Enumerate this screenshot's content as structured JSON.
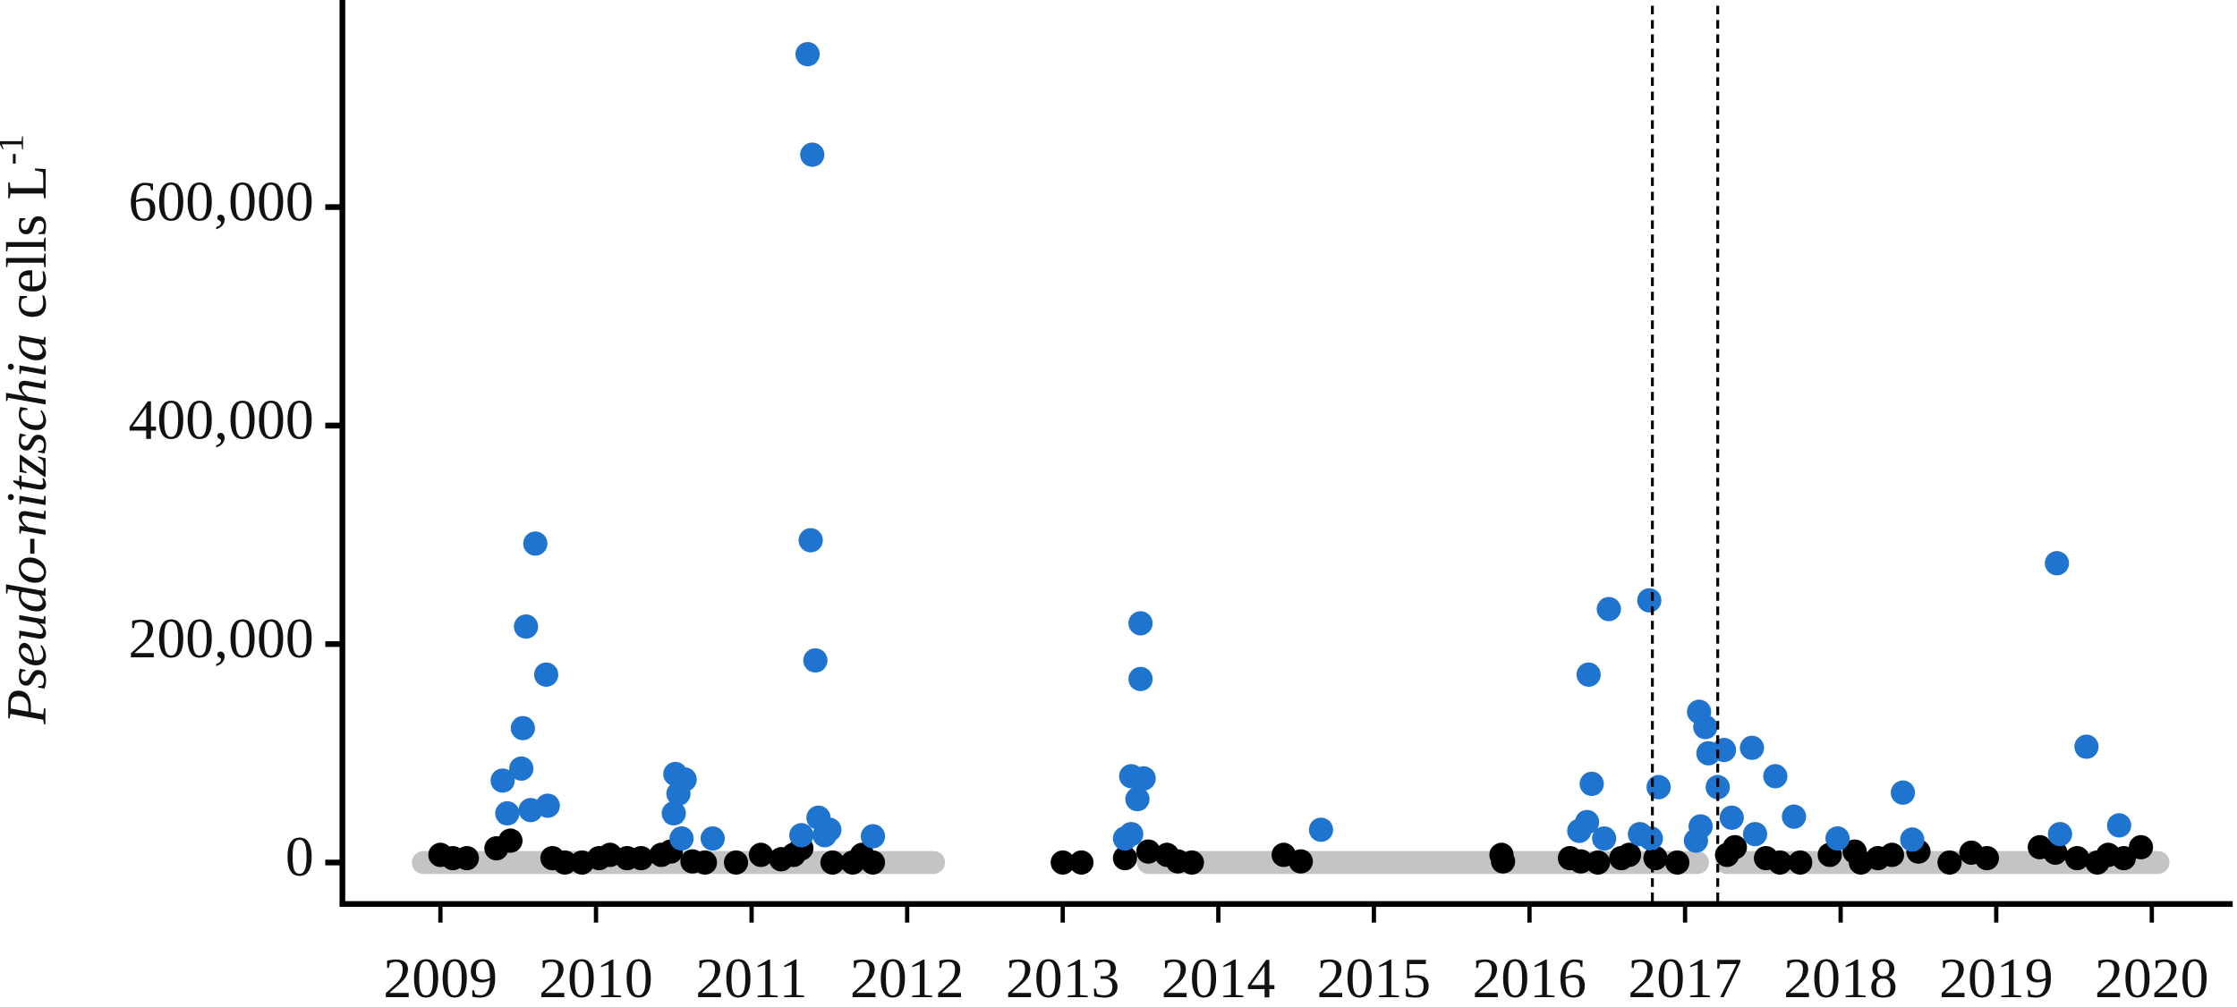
{
  "chart_data": {
    "type": "scatter",
    "ylabel": {
      "italic": "Pseudo-nitzschia",
      "plain": "cells L",
      "superscript": "-1"
    },
    "xlim": [
      2008.37,
      2020.52
    ],
    "ylim": [
      -38000,
      787000
    ],
    "xticks": [
      2009,
      2010,
      2011,
      2012,
      2013,
      2014,
      2015,
      2016,
      2017,
      2018,
      2019,
      2020
    ],
    "yticks": [
      {
        "value": 0,
        "label": "0"
      },
      {
        "value": 200000,
        "label": "200,000"
      },
      {
        "value": 400000,
        "label": "400,000"
      },
      {
        "value": 600000,
        "label": "600,000"
      }
    ],
    "reference_lines": {
      "x": [
        2016.79,
        2017.21
      ],
      "style": "dashed",
      "color": "#000000"
    },
    "series": [
      {
        "mode": "line",
        "color": "#c4c4c4",
        "x": [
          2008.89,
          2012.17,
          null,
          2013.55,
          2017.08,
          null,
          2017.27,
          2020.04
        ],
        "values": [
          0,
          0,
          null,
          0,
          0,
          null,
          0,
          0
        ]
      },
      {
        "mode": "markers",
        "color": "#000000",
        "x": [
          2009.0,
          2009.08,
          2009.17,
          2009.36,
          2009.45,
          2009.72,
          2009.8,
          2009.91,
          2010.02,
          2010.09,
          2010.2,
          2010.29,
          2010.42,
          2010.48,
          2010.62,
          2010.7,
          2010.9,
          2011.06,
          2011.19,
          2011.27,
          2011.32,
          2011.52,
          2011.65,
          2011.71,
          2011.78,
          2013.0,
          2013.12,
          2013.4,
          2013.55,
          2013.67,
          2013.74,
          2013.83,
          2014.42,
          2014.53,
          2015.82,
          2015.83,
          2016.26,
          2016.33,
          2016.44,
          2016.59,
          2016.64,
          2016.81,
          2016.95,
          2017.27,
          2017.32,
          2017.52,
          2017.61,
          2017.74,
          2017.93,
          2018.09,
          2018.13,
          2018.24,
          2018.33,
          2018.5,
          2018.7,
          2018.84,
          2018.94,
          2019.28,
          2019.38,
          2019.52,
          2019.65,
          2019.72,
          2019.82,
          2019.93
        ],
        "values": [
          7000,
          4000,
          4000,
          13000,
          20000,
          4000,
          0,
          0,
          4000,
          7000,
          4000,
          4000,
          7000,
          10000,
          1000,
          0,
          0,
          7000,
          3000,
          7000,
          13000,
          0,
          0,
          7000,
          0,
          0,
          0,
          4000,
          10000,
          7000,
          1000,
          0,
          7000,
          1000,
          7000,
          1000,
          4000,
          1000,
          0,
          4000,
          7000,
          4000,
          0,
          7000,
          14000,
          4000,
          0,
          0,
          7000,
          10000,
          0,
          4000,
          7000,
          10000,
          0,
          9000,
          4000,
          14000,
          9000,
          4000,
          0,
          7000,
          4000,
          14000
        ]
      },
      {
        "mode": "markers",
        "color": "#1f74d0",
        "x": [
          2009.4,
          2009.43,
          2009.52,
          2009.53,
          2009.55,
          2009.58,
          2009.61,
          2009.68,
          2009.69,
          2010.51,
          2010.53,
          2010.57,
          2010.5,
          2010.55,
          2010.75,
          2011.36,
          2011.39,
          2011.38,
          2011.41,
          2011.43,
          2011.32,
          2011.47,
          2011.5,
          2011.78,
          2013.44,
          2013.48,
          2013.5,
          2013.5,
          2013.52,
          2013.4,
          2013.44,
          2014.66,
          2016.51,
          2016.38,
          2016.4,
          2016.32,
          2016.37,
          2016.48,
          2016.77,
          2016.83,
          2016.71,
          2016.78,
          2017.09,
          2017.13,
          2017.15,
          2017.25,
          2017.21,
          2017.3,
          2017.1,
          2017.07,
          2017.43,
          2017.58,
          2017.45,
          2017.7,
          2017.98,
          2018.4,
          2018.46,
          2019.39,
          2019.58,
          2019.41,
          2019.79
        ],
        "values": [
          75000,
          45000,
          86000,
          123000,
          216000,
          48000,
          292000,
          172000,
          52000,
          81000,
          63000,
          76000,
          45000,
          22000,
          22000,
          740000,
          648000,
          295000,
          185000,
          41000,
          25000,
          25000,
          30000,
          24000,
          79000,
          58000,
          219000,
          168000,
          77000,
          22000,
          26000,
          30000,
          232000,
          172000,
          72000,
          29000,
          37000,
          22000,
          240000,
          69000,
          26000,
          22000,
          138000,
          124000,
          100000,
          103000,
          69000,
          41000,
          33000,
          20000,
          105000,
          79000,
          26000,
          42000,
          22000,
          64000,
          21000,
          274000,
          106000,
          26000,
          34000
        ]
      }
    ]
  }
}
